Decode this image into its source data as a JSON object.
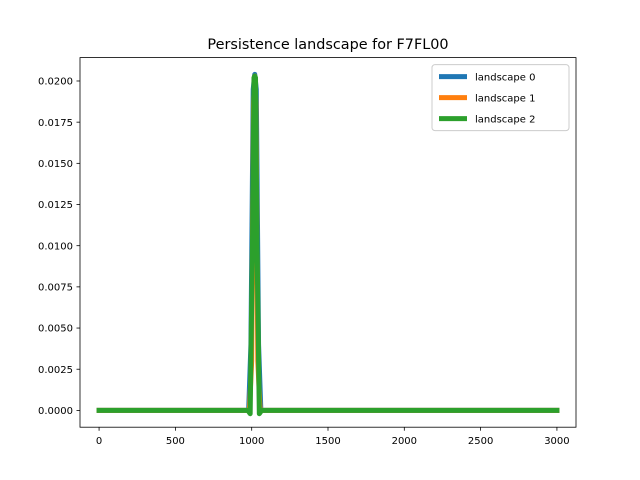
{
  "chart_data": {
    "type": "line",
    "title": "Persistence landscape for F7FL00",
    "xlabel": "",
    "ylabel": "",
    "xlim": [
      -125,
      3125
    ],
    "ylim": [
      -0.00102,
      0.02142
    ],
    "xticks": [
      0,
      500,
      1000,
      1500,
      2000,
      2500,
      3000
    ],
    "xtick_labels": [
      "0",
      "500",
      "1000",
      "1500",
      "2000",
      "2500",
      "3000"
    ],
    "yticks": [
      0.0,
      0.0025,
      0.005,
      0.0075,
      0.01,
      0.0125,
      0.015,
      0.0175,
      0.02
    ],
    "ytick_labels": [
      "0.0000",
      "0.0025",
      "0.0050",
      "0.0075",
      "0.0100",
      "0.0125",
      "0.0150",
      "0.0175",
      "0.0200"
    ],
    "grid": false,
    "legend_position": "top-right",
    "series": [
      {
        "name": "landscape 0",
        "color": "#1f77b4",
        "x": [
          0,
          980,
          995,
          1010,
          1020,
          1030,
          1045,
          1060,
          3000
        ],
        "y": [
          0,
          0,
          0.004,
          0.0195,
          0.0204,
          0.0195,
          0.004,
          0,
          0
        ]
      },
      {
        "name": "landscape 1",
        "color": "#ff7f0e",
        "x": [
          0,
          985,
          1000,
          1012,
          1020,
          1028,
          1040,
          1055,
          3000
        ],
        "y": [
          0,
          0,
          0.003,
          0.0185,
          0.0203,
          0.0185,
          0.003,
          0,
          0
        ]
      },
      {
        "name": "landscape 2",
        "color": "#2ca02c",
        "x": [
          0,
          975,
          990,
          1005,
          1015,
          1020,
          1025,
          1035,
          1050,
          1065,
          3000
        ],
        "y": [
          0,
          0,
          -0.0002,
          0.01,
          0.0202,
          0.0203,
          0.0202,
          0.01,
          -0.0002,
          0,
          0
        ]
      }
    ]
  }
}
